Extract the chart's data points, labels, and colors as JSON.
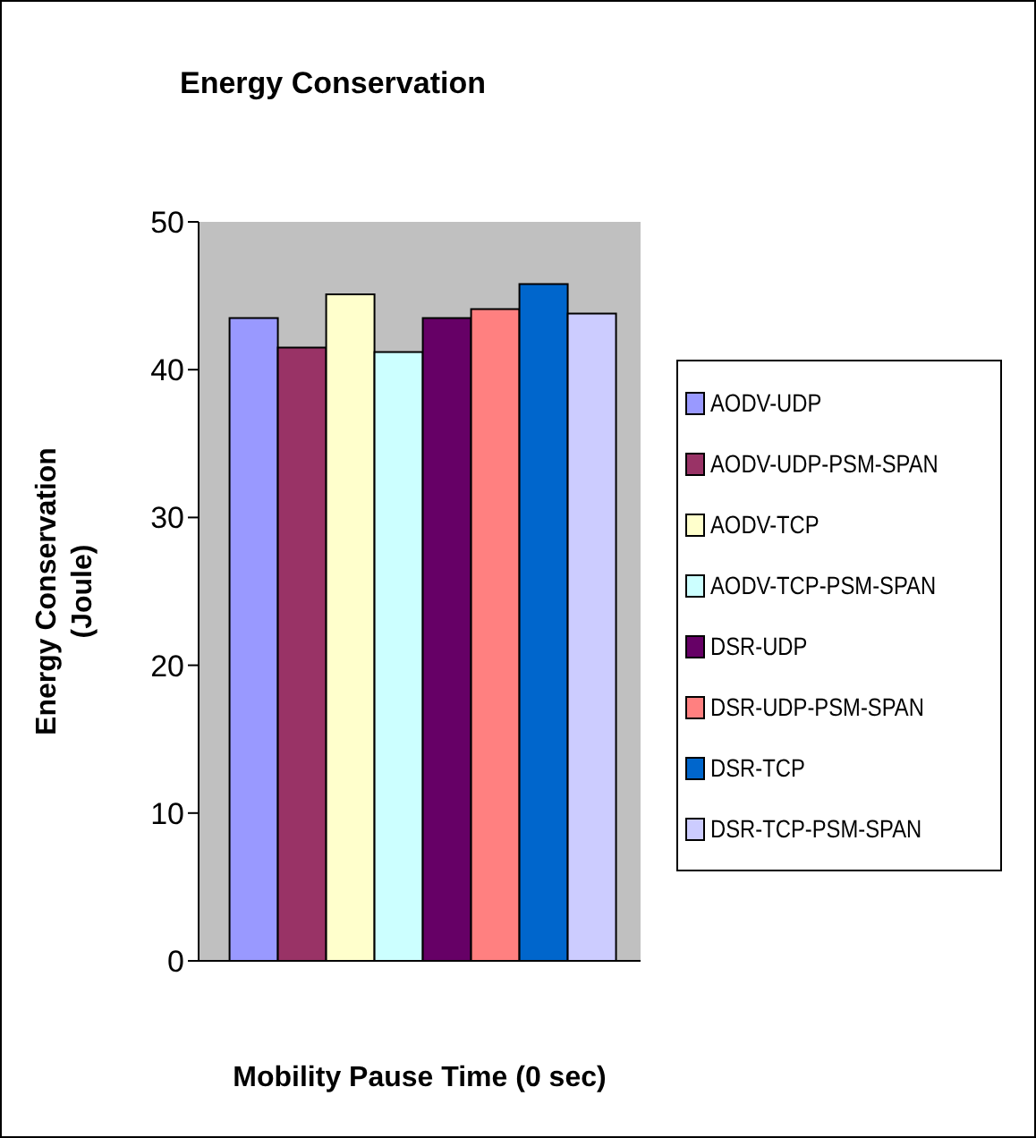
{
  "chart_data": {
    "type": "bar",
    "title": "Energy Conservation",
    "xlabel": "Mobility Pause Time (0 sec)",
    "ylabel": "Energy Conservation (Joule)",
    "categories": [
      null
    ],
    "series": [
      {
        "name": "AODV-UDP",
        "color": "#9999ff",
        "values": [
          43.5
        ]
      },
      {
        "name": "AODV-UDP-PSM-SPAN",
        "color": "#993366",
        "values": [
          41.5
        ]
      },
      {
        "name": "AODV-TCP",
        "color": "#ffffcc",
        "values": [
          45.1
        ]
      },
      {
        "name": "AODV-TCP-PSM-SPAN",
        "color": "#ccffff",
        "values": [
          41.2
        ]
      },
      {
        "name": "DSR-UDP",
        "color": "#660066",
        "values": [
          43.5
        ]
      },
      {
        "name": "DSR-UDP-PSM-SPAN",
        "color": "#ff8080",
        "values": [
          44.1
        ]
      },
      {
        "name": "DSR-TCP",
        "color": "#0066cc",
        "values": [
          45.8
        ]
      },
      {
        "name": "DSR-TCP-PSM-SPAN",
        "color": "#ccccff",
        "values": [
          43.8
        ]
      }
    ],
    "ylim": [
      0,
      50
    ],
    "yticks": [
      0,
      10,
      20,
      30,
      40,
      50
    ],
    "legend": "right"
  }
}
